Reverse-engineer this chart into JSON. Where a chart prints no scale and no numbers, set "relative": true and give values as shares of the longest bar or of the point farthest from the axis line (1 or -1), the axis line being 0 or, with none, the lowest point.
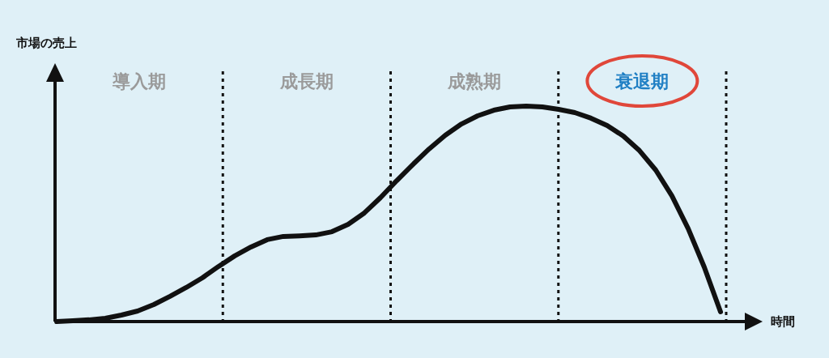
{
  "chart_data": {
    "type": "line",
    "relative": true,
    "xlabel": "時間",
    "ylabel": "市場の売上",
    "categories": [
      null,
      null,
      null,
      null,
      null,
      null,
      null,
      null,
      null,
      null,
      null,
      null,
      null,
      null,
      null,
      null,
      null,
      null,
      null,
      null,
      null,
      null,
      null,
      null,
      null,
      null,
      null,
      null,
      null,
      null,
      null,
      null,
      null,
      null,
      null,
      null,
      null,
      null,
      null,
      null,
      null,
      null
    ],
    "series": [
      {
        "color": "#111111",
        "values": [
          0,
          0.004,
          0.008,
          0.015,
          0.03,
          0.049,
          0.079,
          0.117,
          0.158,
          0.203,
          0.256,
          0.305,
          0.346,
          0.38,
          0.395,
          0.398,
          0.402,
          0.417,
          0.451,
          0.504,
          0.575,
          0.654,
          0.729,
          0.801,
          0.865,
          0.917,
          0.955,
          0.981,
          0.996,
          1,
          0.996,
          0.985,
          0.97,
          0.944,
          0.91,
          0.861,
          0.793,
          0.703,
          0.583,
          0.432,
          0.252,
          0.045
        ]
      }
    ],
    "annotations": [
      "導入期",
      "成長期",
      "成熟期",
      "衰退期"
    ],
    "grid": false,
    "marker": "none",
    "line_style": "solid"
  }
}
